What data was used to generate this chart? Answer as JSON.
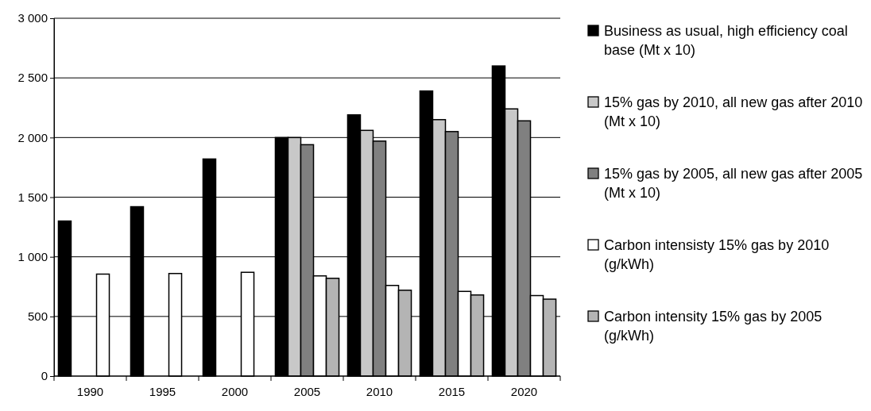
{
  "chart_data": {
    "type": "bar",
    "categories": [
      "1990",
      "1995",
      "2000",
      "2005",
      "2010",
      "2015",
      "2020"
    ],
    "series": [
      {
        "name": "Business as usual, high efficiency coal base (Mt x 10)",
        "color": "#000000",
        "values": [
          1300,
          1420,
          1820,
          2000,
          2190,
          2390,
          2600
        ]
      },
      {
        "name": "15% gas by 2010, all new gas after 2010 (Mt x 10)",
        "color": "#c8c8c8",
        "values": [
          null,
          null,
          null,
          2000,
          2060,
          2150,
          2240
        ]
      },
      {
        "name": "15% gas by 2005, all new gas after 2005 (Mt x 10)",
        "color": "#808080",
        "values": [
          null,
          null,
          null,
          1940,
          1970,
          2050,
          2140
        ]
      },
      {
        "name": "Carbon intensisty 15% gas by 2010 (g/kWh)",
        "color": "#ffffff",
        "values": [
          855,
          860,
          870,
          840,
          760,
          710,
          675
        ]
      },
      {
        "name": "Carbon intensity 15% gas by 2005 (g/kWh)",
        "color": "#b4b4b4",
        "values": [
          null,
          null,
          null,
          820,
          720,
          680,
          645
        ]
      }
    ],
    "ylim": [
      0,
      3000
    ],
    "yticks": [
      0,
      500,
      {
        "value": 1000,
        "label": "1 000"
      },
      {
        "value": 1500,
        "label": "1 500"
      },
      {
        "value": 2000,
        "label": "2 000"
      },
      {
        "value": 2500,
        "label": "2 500"
      },
      {
        "value": 3000,
        "label": "3 000"
      }
    ],
    "grid": "y",
    "legend": "right"
  }
}
